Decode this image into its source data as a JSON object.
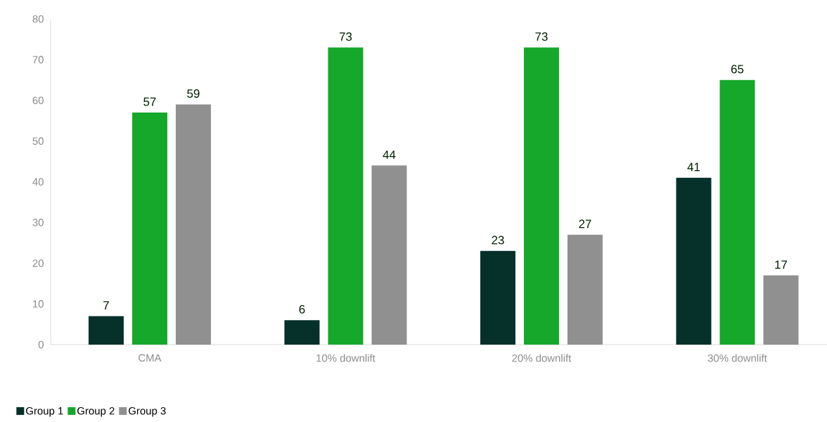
{
  "chart_data": {
    "type": "bar",
    "categories": [
      "CMA",
      "10% downlift",
      "20% downlift",
      "30% downlift"
    ],
    "series": [
      {
        "name": "Group 1",
        "color": "#06302a",
        "values": [
          7,
          6,
          23,
          41
        ]
      },
      {
        "name": "Group 2",
        "color": "#15a82a",
        "values": [
          57,
          73,
          73,
          65
        ]
      },
      {
        "name": "Group 3",
        "color": "#909090",
        "values": [
          59,
          44,
          27,
          17
        ]
      }
    ],
    "ylim": [
      0,
      80
    ],
    "yticks": [
      0,
      10,
      20,
      30,
      40,
      50,
      60,
      70,
      80
    ],
    "grid": false,
    "legend": "bottom left",
    "data_labels": true
  }
}
